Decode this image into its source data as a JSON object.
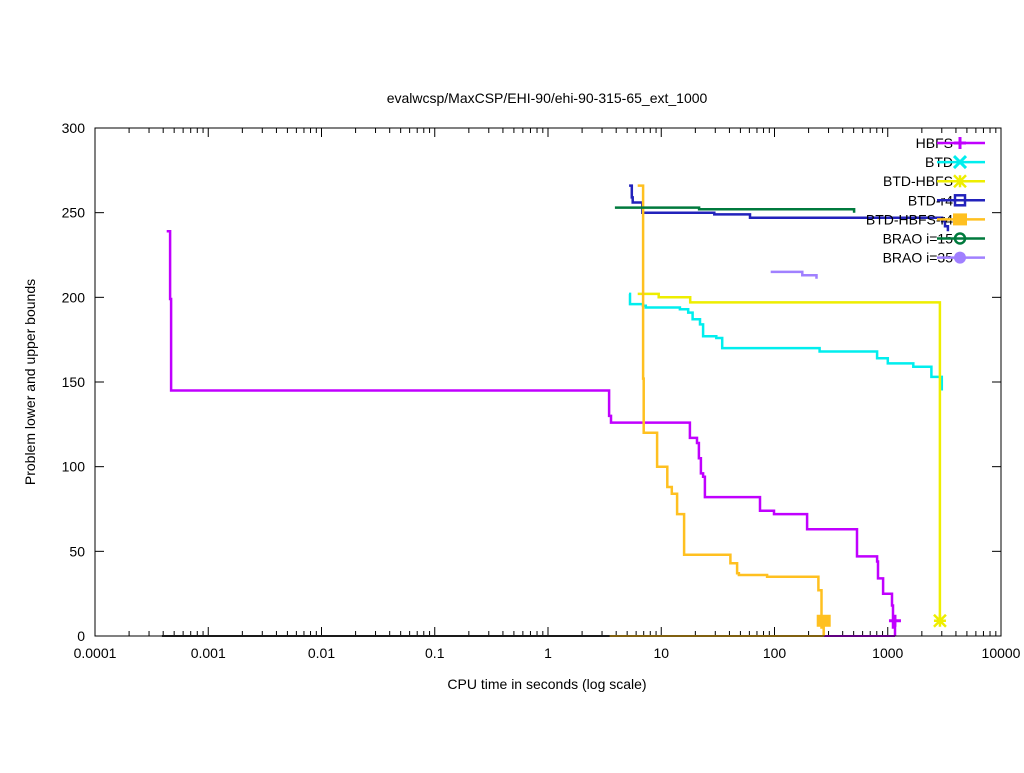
{
  "chart_data": {
    "type": "line",
    "title": "evalwcsp/MaxCSP/EHI-90/ehi-90-315-65_ext_1000",
    "xlabel": "CPU time in seconds (log scale)",
    "ylabel": "Problem lower and upper bounds",
    "xscale": "log",
    "xlim": [
      0.0001,
      10000
    ],
    "ylim": [
      0,
      300
    ],
    "xticks": [
      0.0001,
      0.001,
      0.01,
      0.1,
      1,
      10,
      100,
      1000,
      10000
    ],
    "xtick_labels": [
      "0.0001",
      "0.001",
      "0.01",
      "0.1",
      "1",
      "10",
      "100",
      "1000",
      "10000"
    ],
    "yticks": [
      0,
      50,
      100,
      150,
      200,
      250,
      300
    ],
    "ytick_labels": [
      "0",
      "50",
      "100",
      "150",
      "200",
      "250",
      "300"
    ],
    "grid": false,
    "legend_position": "top-right",
    "series": [
      {
        "name": "HBFS",
        "color": "#c000ff",
        "marker": "plus",
        "points": [
          [
            0.00043,
            239
          ],
          [
            0.00046,
            199
          ],
          [
            0.00047,
            145
          ],
          [
            3.46,
            130
          ],
          [
            3.6,
            126
          ],
          [
            17.9,
            117
          ],
          [
            20.7,
            114
          ],
          [
            21.5,
            105
          ],
          [
            22.4,
            96
          ],
          [
            23.4,
            94
          ],
          [
            24.3,
            82
          ],
          [
            74.5,
            74
          ],
          [
            99,
            72
          ],
          [
            194,
            63
          ],
          [
            535,
            47
          ],
          [
            805,
            44
          ],
          [
            820,
            34
          ],
          [
            909,
            25
          ],
          [
            1090,
            18
          ],
          [
            1113,
            5
          ],
          [
            1158,
            0
          ]
        ],
        "lower": [
          [
            272,
            0
          ],
          [
            1158,
            0
          ]
        ],
        "solution": [
          1158,
          9
        ]
      },
      {
        "name": "BTD",
        "color": "#00eeee",
        "marker": "cross",
        "points": [
          [
            5.19,
            202
          ],
          [
            5.3,
            196
          ],
          [
            6.9,
            195
          ],
          [
            7.3,
            194
          ],
          [
            14.6,
            193
          ],
          [
            17.3,
            191
          ],
          [
            18.9,
            187
          ],
          [
            22.0,
            184
          ],
          [
            23.4,
            177
          ],
          [
            30.6,
            176
          ],
          [
            34.5,
            170
          ],
          [
            250,
            168
          ],
          [
            805,
            164
          ],
          [
            1000,
            161
          ],
          [
            1680,
            159
          ],
          [
            2430,
            153
          ],
          [
            3000,
            145
          ]
        ],
        "lower": [],
        "solution": null
      },
      {
        "name": "BTD-HBFS",
        "color": "#eeee00",
        "marker": "star",
        "points": [
          [
            6.2,
            202
          ],
          [
            9.5,
            200
          ],
          [
            18,
            197
          ],
          [
            2890,
            10
          ]
        ],
        "lower": [],
        "solution": [
          2890,
          9
        ]
      },
      {
        "name": "BTD-r4",
        "color": "#2222bb",
        "marker": "box",
        "points": [
          [
            5.2,
            266
          ],
          [
            5.5,
            259
          ],
          [
            5.6,
            256
          ],
          [
            6.8,
            250
          ],
          [
            29.4,
            249
          ],
          [
            60.8,
            247
          ],
          [
            3020,
            245
          ],
          [
            3200,
            242
          ],
          [
            3400,
            239
          ]
        ],
        "lower": [],
        "solution": null
      },
      {
        "name": "BTD-HBFS-r4",
        "color": "#ffc020",
        "marker": "filled-box",
        "points": [
          [
            6.2,
            266
          ],
          [
            6.65,
            266
          ],
          [
            6.92,
            152
          ],
          [
            7.0,
            120
          ],
          [
            9.2,
            100
          ],
          [
            11.3,
            88
          ],
          [
            12.4,
            84
          ],
          [
            13.8,
            72
          ],
          [
            15.9,
            48
          ],
          [
            40.8,
            43
          ],
          [
            46.7,
            37
          ],
          [
            48.5,
            36
          ],
          [
            86,
            35
          ],
          [
            244,
            27
          ],
          [
            260,
            5
          ],
          [
            272,
            0
          ]
        ],
        "lower": [
          [
            3.5,
            0
          ],
          [
            272,
            0
          ]
        ],
        "solution": [
          272,
          9
        ]
      },
      {
        "name": "BRAO i=15",
        "color": "#007a3d",
        "marker": "circle",
        "points": [
          [
            3.9,
            253
          ],
          [
            21.6,
            252
          ],
          [
            505,
            250
          ]
        ],
        "lower": [
          [
            0.00039,
            0
          ],
          [
            3.5,
            0
          ]
        ],
        "solution": null
      },
      {
        "name": "BRAO i=35",
        "color": "#a080ff",
        "marker": "filled-circle",
        "points": [
          [
            92.6,
            215
          ],
          [
            176,
            213
          ],
          [
            235,
            211
          ]
        ],
        "lower": [],
        "solution": null
      }
    ]
  }
}
